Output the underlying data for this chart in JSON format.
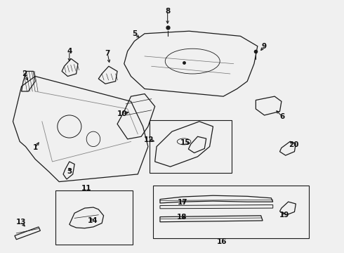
{
  "bg_color": "#f0f0f0",
  "line_color": "#1a1a1a",
  "label_color": "#111111",
  "figsize": [
    4.9,
    3.6
  ],
  "dpi": 100
}
